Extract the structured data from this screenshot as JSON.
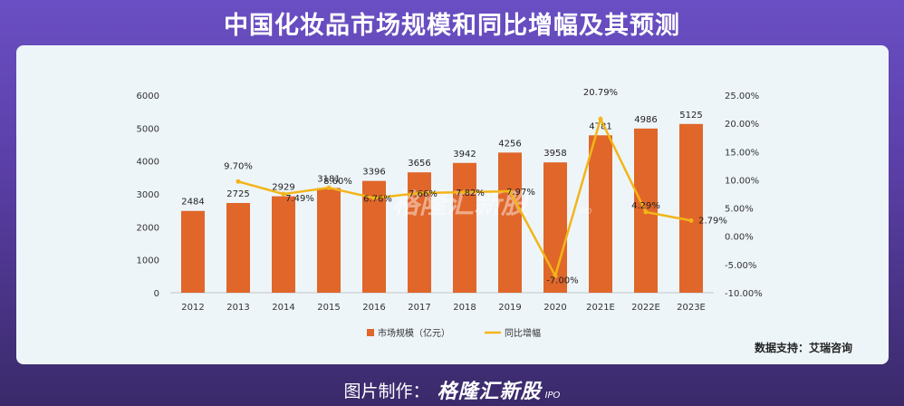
{
  "title": "中国化妆品市场规模和同比增幅及其预测",
  "source": "数据支持：艾瑞咨询",
  "footer": {
    "credit": "图片制作：",
    "brand": "格隆汇新股",
    "brand_sub": "IPO"
  },
  "watermark": {
    "text": "格隆汇新股",
    "sub": "IPO"
  },
  "colors": {
    "bar": "#e0662a",
    "line": "#f2b519",
    "accent": "#6a4fc4"
  },
  "chart_data": {
    "type": "bar",
    "categories": [
      "2012",
      "2013",
      "2014",
      "2015",
      "2016",
      "2017",
      "2018",
      "2019",
      "2020",
      "2021E",
      "2022E",
      "2023E"
    ],
    "series": [
      {
        "name": "市场规模（亿元）",
        "type": "bar",
        "axis": "left",
        "values": [
          2484,
          2725,
          2929,
          3181,
          3396,
          3656,
          3942,
          4256,
          3958,
          4781,
          4986,
          5125
        ]
      },
      {
        "name": "同比增幅",
        "type": "line",
        "axis": "right",
        "values": [
          null,
          9.7,
          7.49,
          8.6,
          6.76,
          7.66,
          7.82,
          7.97,
          -7.0,
          20.79,
          4.29,
          2.79
        ],
        "labels": [
          null,
          "9.70%",
          "7.49%",
          "8.60%",
          "6.76%",
          "7.66%",
          "7.82%",
          "7.97%",
          "-7.00%",
          "20.79%",
          "4.29%",
          "2.79%"
        ]
      }
    ],
    "ylim": [
      0,
      6000
    ],
    "yticks": [
      "0",
      "1000",
      "2000",
      "3000",
      "4000",
      "5000",
      "6000"
    ],
    "y2lim": [
      -10,
      25
    ],
    "y2ticks": [
      "-10.00%",
      "-5.00%",
      "0.00%",
      "5.00%",
      "10.00%",
      "15.00%",
      "20.00%",
      "25.00%"
    ],
    "legend": {
      "position": "bottom"
    },
    "grid": false
  }
}
